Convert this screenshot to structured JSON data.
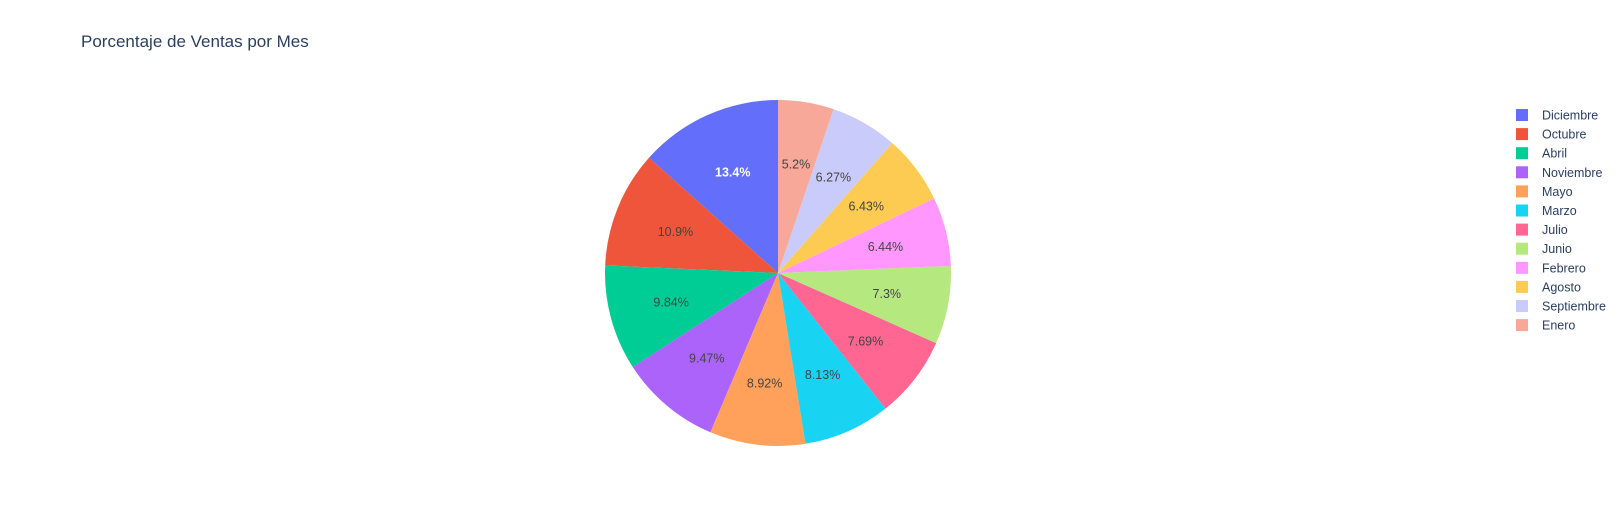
{
  "chart_data": {
    "type": "pie",
    "title": "Porcentaje de Ventas por Mes",
    "categories": [
      "Diciembre",
      "Octubre",
      "Abril",
      "Noviembre",
      "Mayo",
      "Marzo",
      "Julio",
      "Junio",
      "Febrero",
      "Agosto",
      "Septiembre",
      "Enero"
    ],
    "values": [
      13.4,
      10.9,
      9.84,
      9.47,
      8.92,
      8.13,
      7.69,
      7.3,
      6.44,
      6.43,
      6.27,
      5.2
    ],
    "labels": [
      "13.4%",
      "10.9%",
      "9.84%",
      "9.47%",
      "8.92%",
      "8.13%",
      "7.69%",
      "7.3%",
      "6.44%",
      "6.43%",
      "6.27%",
      "5.2%"
    ],
    "colors": [
      "#636efa",
      "#EF553B",
      "#00cc96",
      "#ab63fa",
      "#FFA15A",
      "#19d3f3",
      "#FF6692",
      "#B6E880",
      "#FF97FF",
      "#FECB52",
      "#c9cbfb",
      "#f7a898"
    ],
    "label_colors": [
      "#ffffff",
      "#444444",
      "#444444",
      "#444444",
      "#444444",
      "#444444",
      "#444444",
      "#444444",
      "#444444",
      "#444444",
      "#444444",
      "#444444"
    ],
    "direction": "counterclockwise",
    "start_angle": "top",
    "legend": {
      "placement": "top-right",
      "items": [
        "Diciembre",
        "Octubre",
        "Abril",
        "Noviembre",
        "Mayo",
        "Marzo",
        "Julio",
        "Junio",
        "Febrero",
        "Agosto",
        "Septiembre",
        "Enero"
      ]
    }
  }
}
